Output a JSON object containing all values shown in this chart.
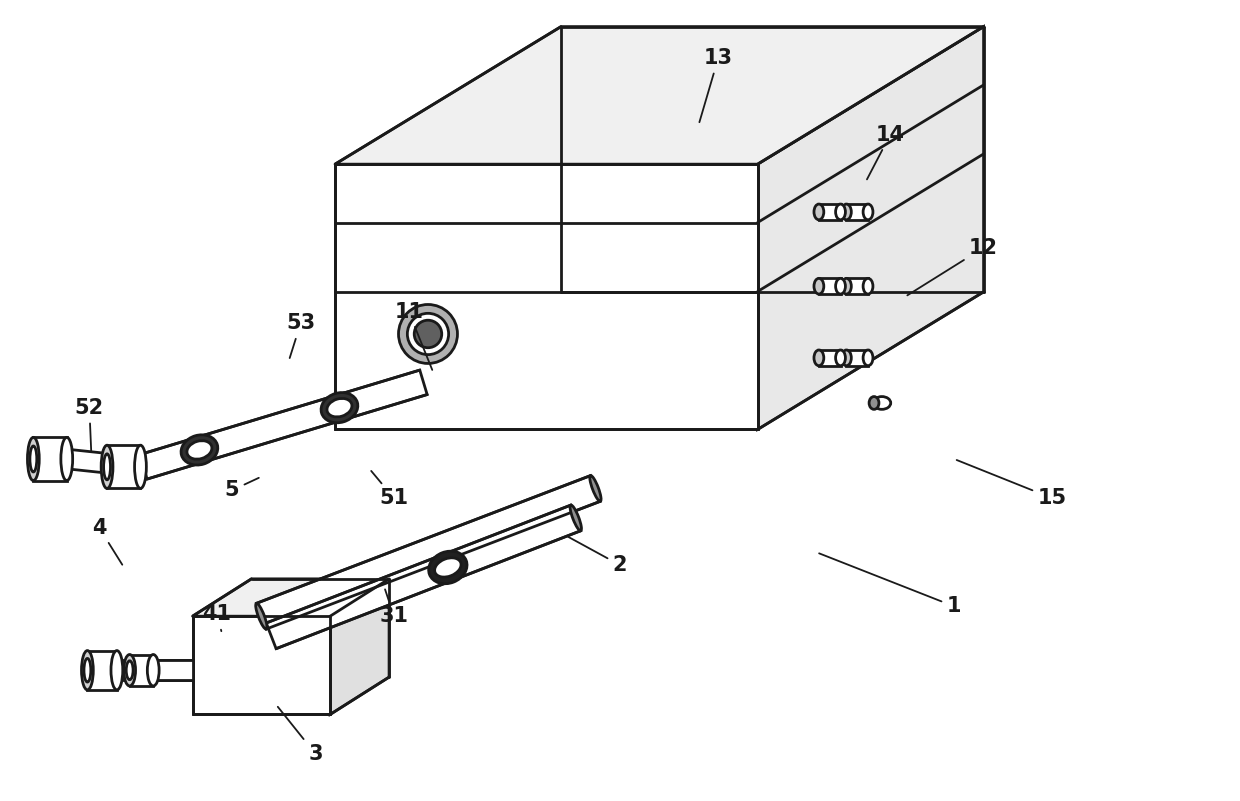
{
  "bg_color": "#ffffff",
  "line_color": "#1a1a1a",
  "line_width": 2.0,
  "label_fontsize": 15,
  "label_fontweight": "bold"
}
